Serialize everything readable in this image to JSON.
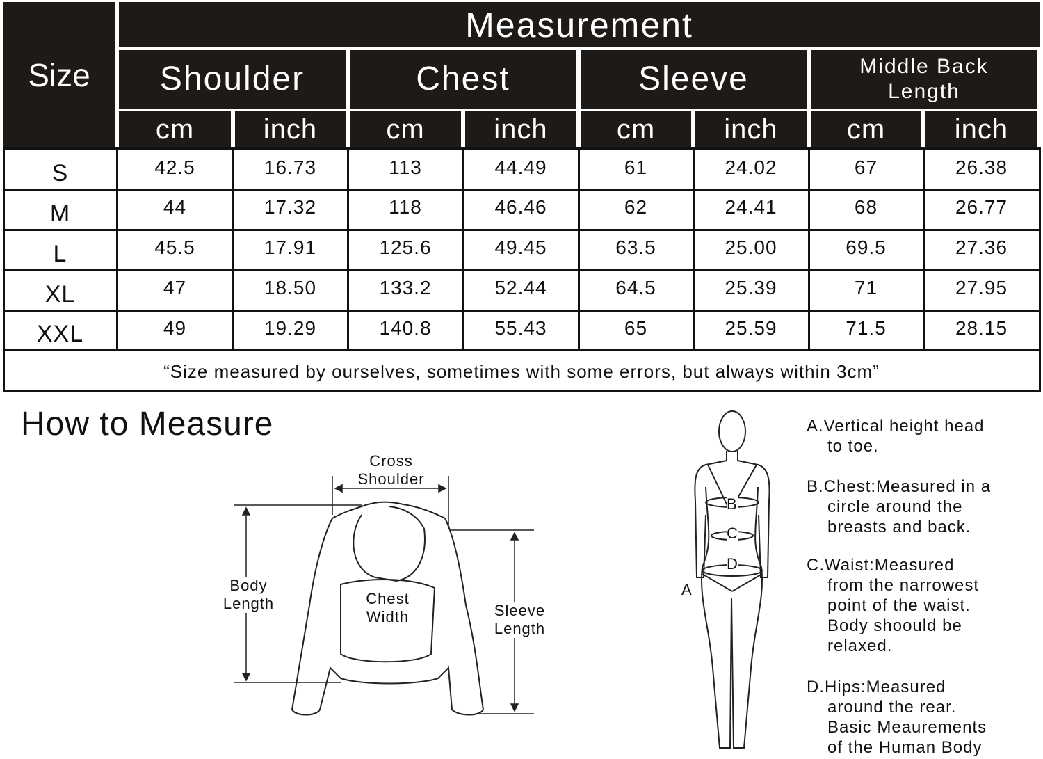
{
  "size_chart": {
    "size_header": "Size",
    "measurement_header": "Measurement",
    "groups": [
      "Shoulder",
      "Chest",
      "Sleeve",
      "Middle Back Length"
    ],
    "units": [
      "cm",
      "inch",
      "cm",
      "inch",
      "cm",
      "inch",
      "cm",
      "inch"
    ],
    "rows": [
      {
        "size": "S",
        "values": [
          "42.5",
          "16.73",
          "113",
          "44.49",
          "61",
          "24.02",
          "67",
          "26.38"
        ]
      },
      {
        "size": "M",
        "values": [
          "44",
          "17.32",
          "118",
          "46.46",
          "62",
          "24.41",
          "68",
          "26.77"
        ]
      },
      {
        "size": "L",
        "values": [
          "45.5",
          "17.91",
          "125.6",
          "49.45",
          "63.5",
          "25.00",
          "69.5",
          "27.36"
        ]
      },
      {
        "size": "XL",
        "values": [
          "47",
          "18.50",
          "133.2",
          "52.44",
          "64.5",
          "25.39",
          "71",
          "27.95"
        ]
      },
      {
        "size": "XXL",
        "values": [
          "49",
          "19.29",
          "140.8",
          "55.43",
          "65",
          "25.59",
          "71.5",
          "28.15"
        ]
      }
    ],
    "footnote": "“Size measured by ourselves, sometimes with some errors, but always within 3cm”"
  },
  "how_to_measure": {
    "title": "How to Measure",
    "sweater_labels": {
      "cross_shoulder": [
        "Cross",
        "Shoulder"
      ],
      "body_length": [
        "Body",
        "Length"
      ],
      "chest_width": [
        "Chest",
        "Width"
      ],
      "sleeve_length": [
        "Sleeve",
        "Length"
      ]
    },
    "body_labels": {
      "a": "A",
      "b": "B",
      "c": "C",
      "d": "D"
    },
    "notes": [
      [
        "A.Vertical height head",
        "to toe."
      ],
      [
        "B.Chest:Measured in a",
        "circle around the",
        "breasts and back."
      ],
      [
        "C.Waist:Measured",
        "from the narrowest",
        "point of the waist.",
        "Body shoould be",
        "relaxed."
      ],
      [
        "D.Hips:Measured",
        "around the rear.",
        "Basic Meaurements",
        "of the Human Body"
      ]
    ]
  }
}
